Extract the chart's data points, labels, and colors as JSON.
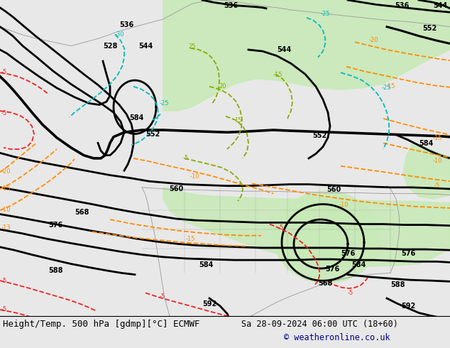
{
  "title_left": "Height/Temp. 500 hPa [gdmp][°C] ECMWF",
  "title_right": "Sa 28-09-2024 06:00 UTC (18+60)",
  "copyright": "© weatheronline.co.uk",
  "bg_light": "#e8e8e8",
  "green_fill": "#c8eab8",
  "fig_width": 6.34,
  "fig_height": 4.9,
  "dpi": 100,
  "text_color": "#000000",
  "copyright_color": "#00008B",
  "lbl_fs": 7,
  "title_fs": 9,
  "col_z500": "#000000",
  "col_orange": "#FF8C00",
  "col_red": "#EE2222",
  "col_cyan": "#00BBBB",
  "col_green": "#88AA00",
  "col_map": "#999999"
}
